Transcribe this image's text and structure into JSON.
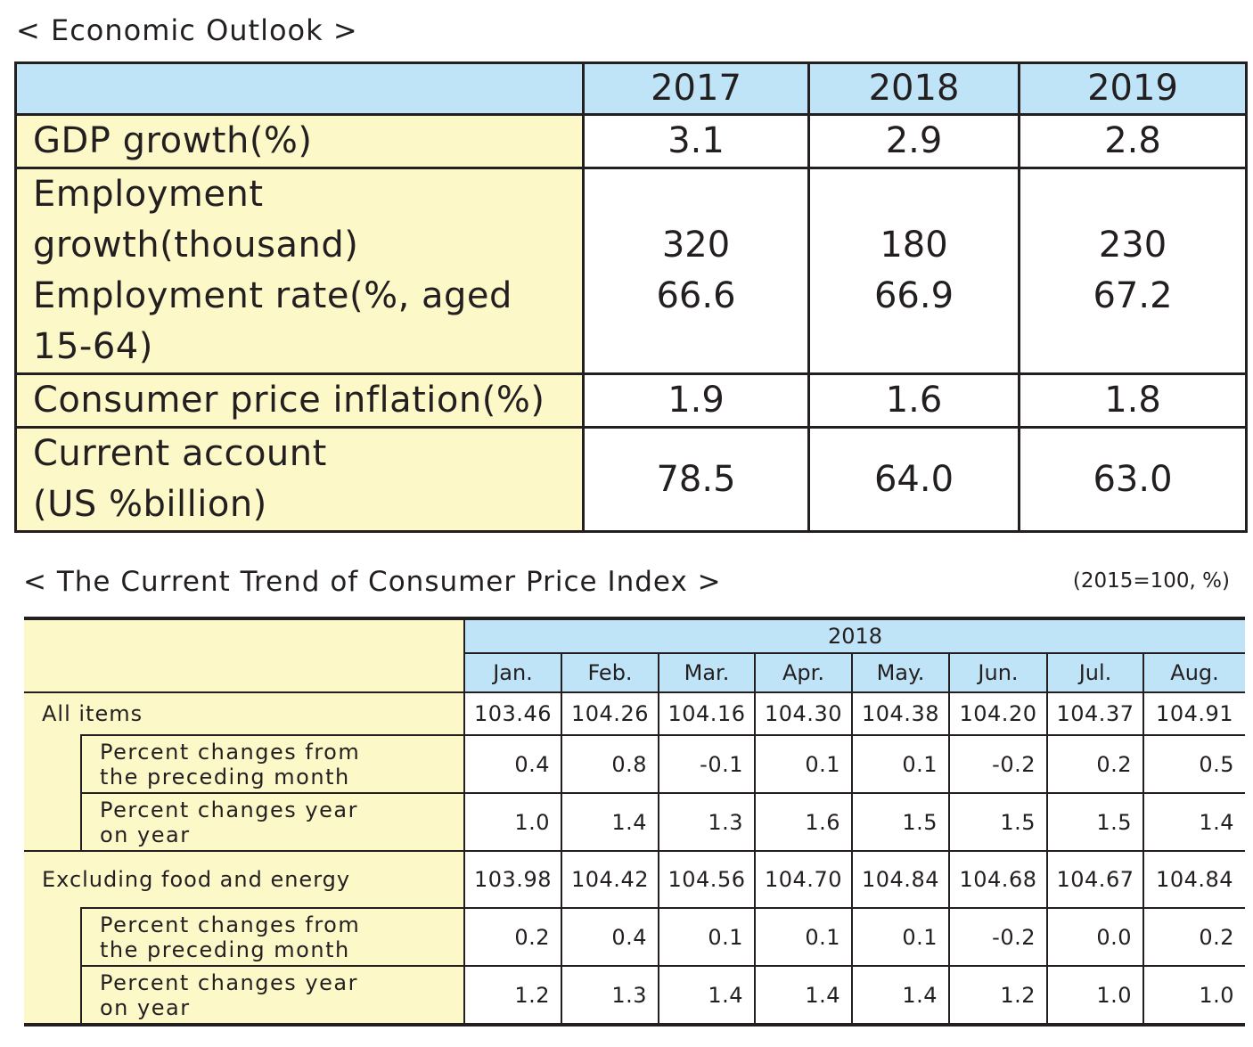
{
  "outlook": {
    "title": "< Economic Outlook >",
    "years": [
      "2017",
      "2018",
      "2019"
    ],
    "rows": [
      {
        "label_lines": [
          "GDP growth(%)"
        ],
        "values": [
          [
            "3.1"
          ],
          [
            "2.9"
          ],
          [
            "2.8"
          ]
        ]
      },
      {
        "label_lines": [
          "Employment",
          "growth(thousand)",
          "Employment rate(%, aged",
          "15-64)"
        ],
        "values": [
          [
            "320",
            "66.6"
          ],
          [
            "180",
            "66.9"
          ],
          [
            "230",
            "67.2"
          ]
        ]
      },
      {
        "label_lines": [
          "Consumer price inflation(%)"
        ],
        "values": [
          [
            "1.9"
          ],
          [
            "1.6"
          ],
          [
            "1.8"
          ]
        ]
      },
      {
        "label_lines": [
          "Current account",
          "(US %billion)"
        ],
        "values": [
          [
            "78.5"
          ],
          [
            "64.0"
          ],
          [
            "63.0"
          ]
        ]
      }
    ]
  },
  "cpi": {
    "title": "< The Current Trend of Consumer Price Index >",
    "unit": "(2015=100, %)",
    "year": "2018",
    "months": [
      "Jan.",
      "Feb.",
      "Mar.",
      "Apr.",
      "May.",
      "Jun.",
      "Jul.",
      "Aug."
    ],
    "groups": [
      {
        "label": "All items",
        "index": [
          "103.46",
          "104.26",
          "104.16",
          "104.30",
          "104.38",
          "104.20",
          "104.37",
          "104.91"
        ],
        "subs": [
          {
            "label_lines": [
              "Percent changes from",
              "the preceding month"
            ],
            "values": [
              "0.4",
              "0.8",
              "-0.1",
              "0.1",
              "0.1",
              "-0.2",
              "0.2",
              "0.5"
            ]
          },
          {
            "label_lines": [
              "Percent changes year",
              "on year"
            ],
            "values": [
              "1.0",
              "1.4",
              "1.3",
              "1.6",
              "1.5",
              "1.5",
              "1.5",
              "1.4"
            ]
          }
        ]
      },
      {
        "label": "Excluding food and energy",
        "index": [
          "103.98",
          "104.42",
          "104.56",
          "104.70",
          "104.84",
          "104.68",
          "104.67",
          "104.84"
        ],
        "subs": [
          {
            "label_lines": [
              "Percent changes from",
              "the preceding month"
            ],
            "values": [
              "0.2",
              "0.4",
              "0.1",
              "0.1",
              "0.1",
              "-0.2",
              "0.0",
              "0.2"
            ]
          },
          {
            "label_lines": [
              "Percent changes year",
              "on year"
            ],
            "values": [
              "1.2",
              "1.3",
              "1.4",
              "1.4",
              "1.4",
              "1.2",
              "1.0",
              "1.0"
            ]
          }
        ]
      }
    ]
  }
}
